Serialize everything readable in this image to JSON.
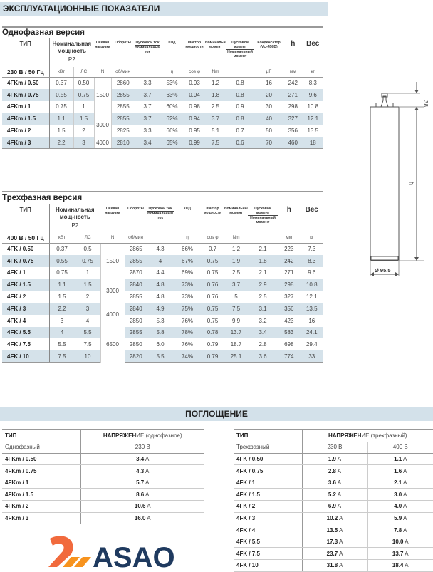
{
  "title": "ЭКСПЛУАТАЦИОННЫЕ ПОКАЗАТЕЛИ",
  "single": {
    "heading": "Однофазная версия",
    "headers": {
      "type": "ТИП",
      "power": "Номинальная мощность",
      "p2": "P2",
      "axial": "Осевая нагрузка",
      "rpm": "Обороты",
      "start_top": "Пусковой ток",
      "start_bottom": "Номинальный ток",
      "eff": "КПД",
      "pf": "Фактор мощности",
      "nom_torque": "Номинальный момент",
      "torque_top": "Пусковой момент",
      "torque_bottom": "Номинальный момент",
      "cap": "Конденсатор (Vc=450В)",
      "h": "h",
      "weight": "Вес"
    },
    "units": {
      "freq": "230 В / 50 Гц",
      "kw": "кВт",
      "hp": "ЛС",
      "axial": "N",
      "rpm": "об/мин",
      "eff": "η",
      "pf": "cos φ",
      "nm": "Nm",
      "cap": "µF",
      "h": "мм",
      "weight": "кг"
    },
    "rows": [
      [
        "4FKm / 0.50",
        "0.37",
        "0.50",
        "2860",
        "3.3",
        "53%",
        "0.93",
        "1.2",
        "0.8",
        "16",
        "242",
        "8.3"
      ],
      [
        "4FKm / 0.75",
        "0.55",
        "0.75",
        "2855",
        "3.7",
        "63%",
        "0.94",
        "1.8",
        "0.8",
        "20",
        "271",
        "9.6"
      ],
      [
        "4FKm / 1",
        "0.75",
        "1",
        "2855",
        "3.7",
        "60%",
        "0.98",
        "2.5",
        "0.9",
        "30",
        "298",
        "10.8"
      ],
      [
        "4FKm / 1.5",
        "1.1",
        "1.5",
        "2855",
        "3.7",
        "62%",
        "0.94",
        "3.7",
        "0.8",
        "40",
        "327",
        "12.1"
      ],
      [
        "4FKm / 2",
        "1.5",
        "2",
        "2825",
        "3.3",
        "66%",
        "0.95",
        "5.1",
        "0.7",
        "50",
        "356",
        "13.5"
      ],
      [
        "4FKm / 3",
        "2.2",
        "3",
        "2810",
        "3.4",
        "65%",
        "0.99",
        "7.5",
        "0.6",
        "70",
        "460",
        "18"
      ]
    ],
    "axial_groups": [
      {
        "value": "1500",
        "count": 3
      },
      {
        "value": "3000",
        "count": 2
      },
      {
        "value": "4000",
        "count": 1
      }
    ]
  },
  "three": {
    "heading": "Трехфазная версия",
    "headers": {
      "type": "ТИП",
      "power": "Номинальная мощ-ность",
      "p2": "P2",
      "axial": "Осевая нагрузка",
      "rpm": "Обороты",
      "start_top": "Пусковой ток",
      "start_bottom": "Номинальный ток",
      "eff": "КПД",
      "pf": "Фактор мощности",
      "nom_torque": "Номинальный момент",
      "torque_top": "Пусковой момент",
      "torque_bottom": "Номинальный момент",
      "h": "h",
      "weight": "Вес"
    },
    "units": {
      "freq": "400 В / 50 Гц",
      "kw": "кВт",
      "hp": "ЛС",
      "axial": "N",
      "rpm": "об/мин",
      "eff": "η",
      "pf": "cos φ",
      "nm": "Nm",
      "h": "мм",
      "weight": "кг"
    },
    "rows": [
      [
        "4FK / 0.50",
        "0.37",
        "0.5",
        "2865",
        "4.3",
        "66%",
        "0.7",
        "1.2",
        "2.1",
        "223",
        "7.3"
      ],
      [
        "4FK / 0.75",
        "0.55",
        "0.75",
        "2855",
        "4",
        "67%",
        "0.75",
        "1.9",
        "1.8",
        "242",
        "8.3"
      ],
      [
        "4FK / 1",
        "0.75",
        "1",
        "2870",
        "4.4",
        "69%",
        "0.75",
        "2.5",
        "2.1",
        "271",
        "9.6"
      ],
      [
        "4FK / 1.5",
        "1.1",
        "1.5",
        "2840",
        "4.8",
        "73%",
        "0.76",
        "3.7",
        "2.9",
        "298",
        "10.8"
      ],
      [
        "4FK / 2",
        "1.5",
        "2",
        "2855",
        "4.8",
        "73%",
        "0.76",
        "5",
        "2.5",
        "327",
        "12.1"
      ],
      [
        "4FK / 3",
        "2.2",
        "3",
        "2840",
        "4.9",
        "75%",
        "0.75",
        "7.5",
        "3.1",
        "356",
        "13.5"
      ],
      [
        "4FK / 4",
        "3",
        "4",
        "2850",
        "5.3",
        "76%",
        "0.75",
        "9.9",
        "3.2",
        "423",
        "16"
      ],
      [
        "4FK / 5.5",
        "4",
        "5.5",
        "2855",
        "5.8",
        "78%",
        "0.78",
        "13.7",
        "3.4",
        "583",
        "24.1"
      ],
      [
        "4FK / 7.5",
        "5.5",
        "7.5",
        "2850",
        "6.0",
        "76%",
        "0.79",
        "18.7",
        "2.8",
        "698",
        "29.4"
      ],
      [
        "4FK / 10",
        "7.5",
        "10",
        "2820",
        "5.5",
        "74%",
        "0.79",
        "25.1",
        "3.6",
        "774",
        "33"
      ]
    ],
    "axial_groups": [
      {
        "value": "1500",
        "count": 3
      },
      {
        "value": "3000",
        "count": 2
      },
      {
        "value": "4000",
        "count": 2
      },
      {
        "value": "6500",
        "count": 3
      }
    ]
  },
  "drawing": {
    "top_dim": "38",
    "height_dim": "h",
    "diameter": "Ø 95.5"
  },
  "absorption": {
    "title": "ПОГЛОЩЕНИЕ",
    "single": {
      "type_label": "ТИП",
      "voltage_bold": "НАПРЯЖЕН",
      "voltage_rest": "ИЕ (однофазное)",
      "phase": "Однофазный",
      "volts": [
        "230 В"
      ],
      "unit": "A",
      "rows": [
        [
          "4FKm / 0.50",
          "3.4"
        ],
        [
          "4FKm / 0.75",
          "4.3"
        ],
        [
          "4FKm / 1",
          "5.7"
        ],
        [
          "4FKm / 1.5",
          "8.6"
        ],
        [
          "4FKm / 2",
          "10.6"
        ],
        [
          "4FKm / 3",
          "16.0"
        ]
      ]
    },
    "three": {
      "type_label": "ТИП",
      "voltage_bold": "НАПРЯЖЕН",
      "voltage_rest": "ИЕ (трехфазный)",
      "phase": "Трехфазный",
      "volts": [
        "230 В",
        "400 В"
      ],
      "unit": "A",
      "rows": [
        [
          "4FK / 0.50",
          "1.9",
          "1.1"
        ],
        [
          "4FK / 0.75",
          "2.8",
          "1.6"
        ],
        [
          "4FK / 1",
          "3.6",
          "2.1"
        ],
        [
          "4FK / 1.5",
          "5.2",
          "3.0"
        ],
        [
          "4FK / 2",
          "6.9",
          "4.0"
        ],
        [
          "4FK / 3",
          "10.2",
          "5.9"
        ],
        [
          "4FK / 4",
          "13.5",
          "7.8"
        ],
        [
          "4FK / 5.5",
          "17.3",
          "10.0"
        ],
        [
          "4FK / 7.5",
          "23.7",
          "13.7"
        ],
        [
          "4FK / 10",
          "31.8",
          "18.4"
        ]
      ]
    }
  },
  "watermark": {
    "text": "ASAO",
    "colors": {
      "orange": "#f05a28",
      "navy": "#1f3a5f"
    }
  }
}
